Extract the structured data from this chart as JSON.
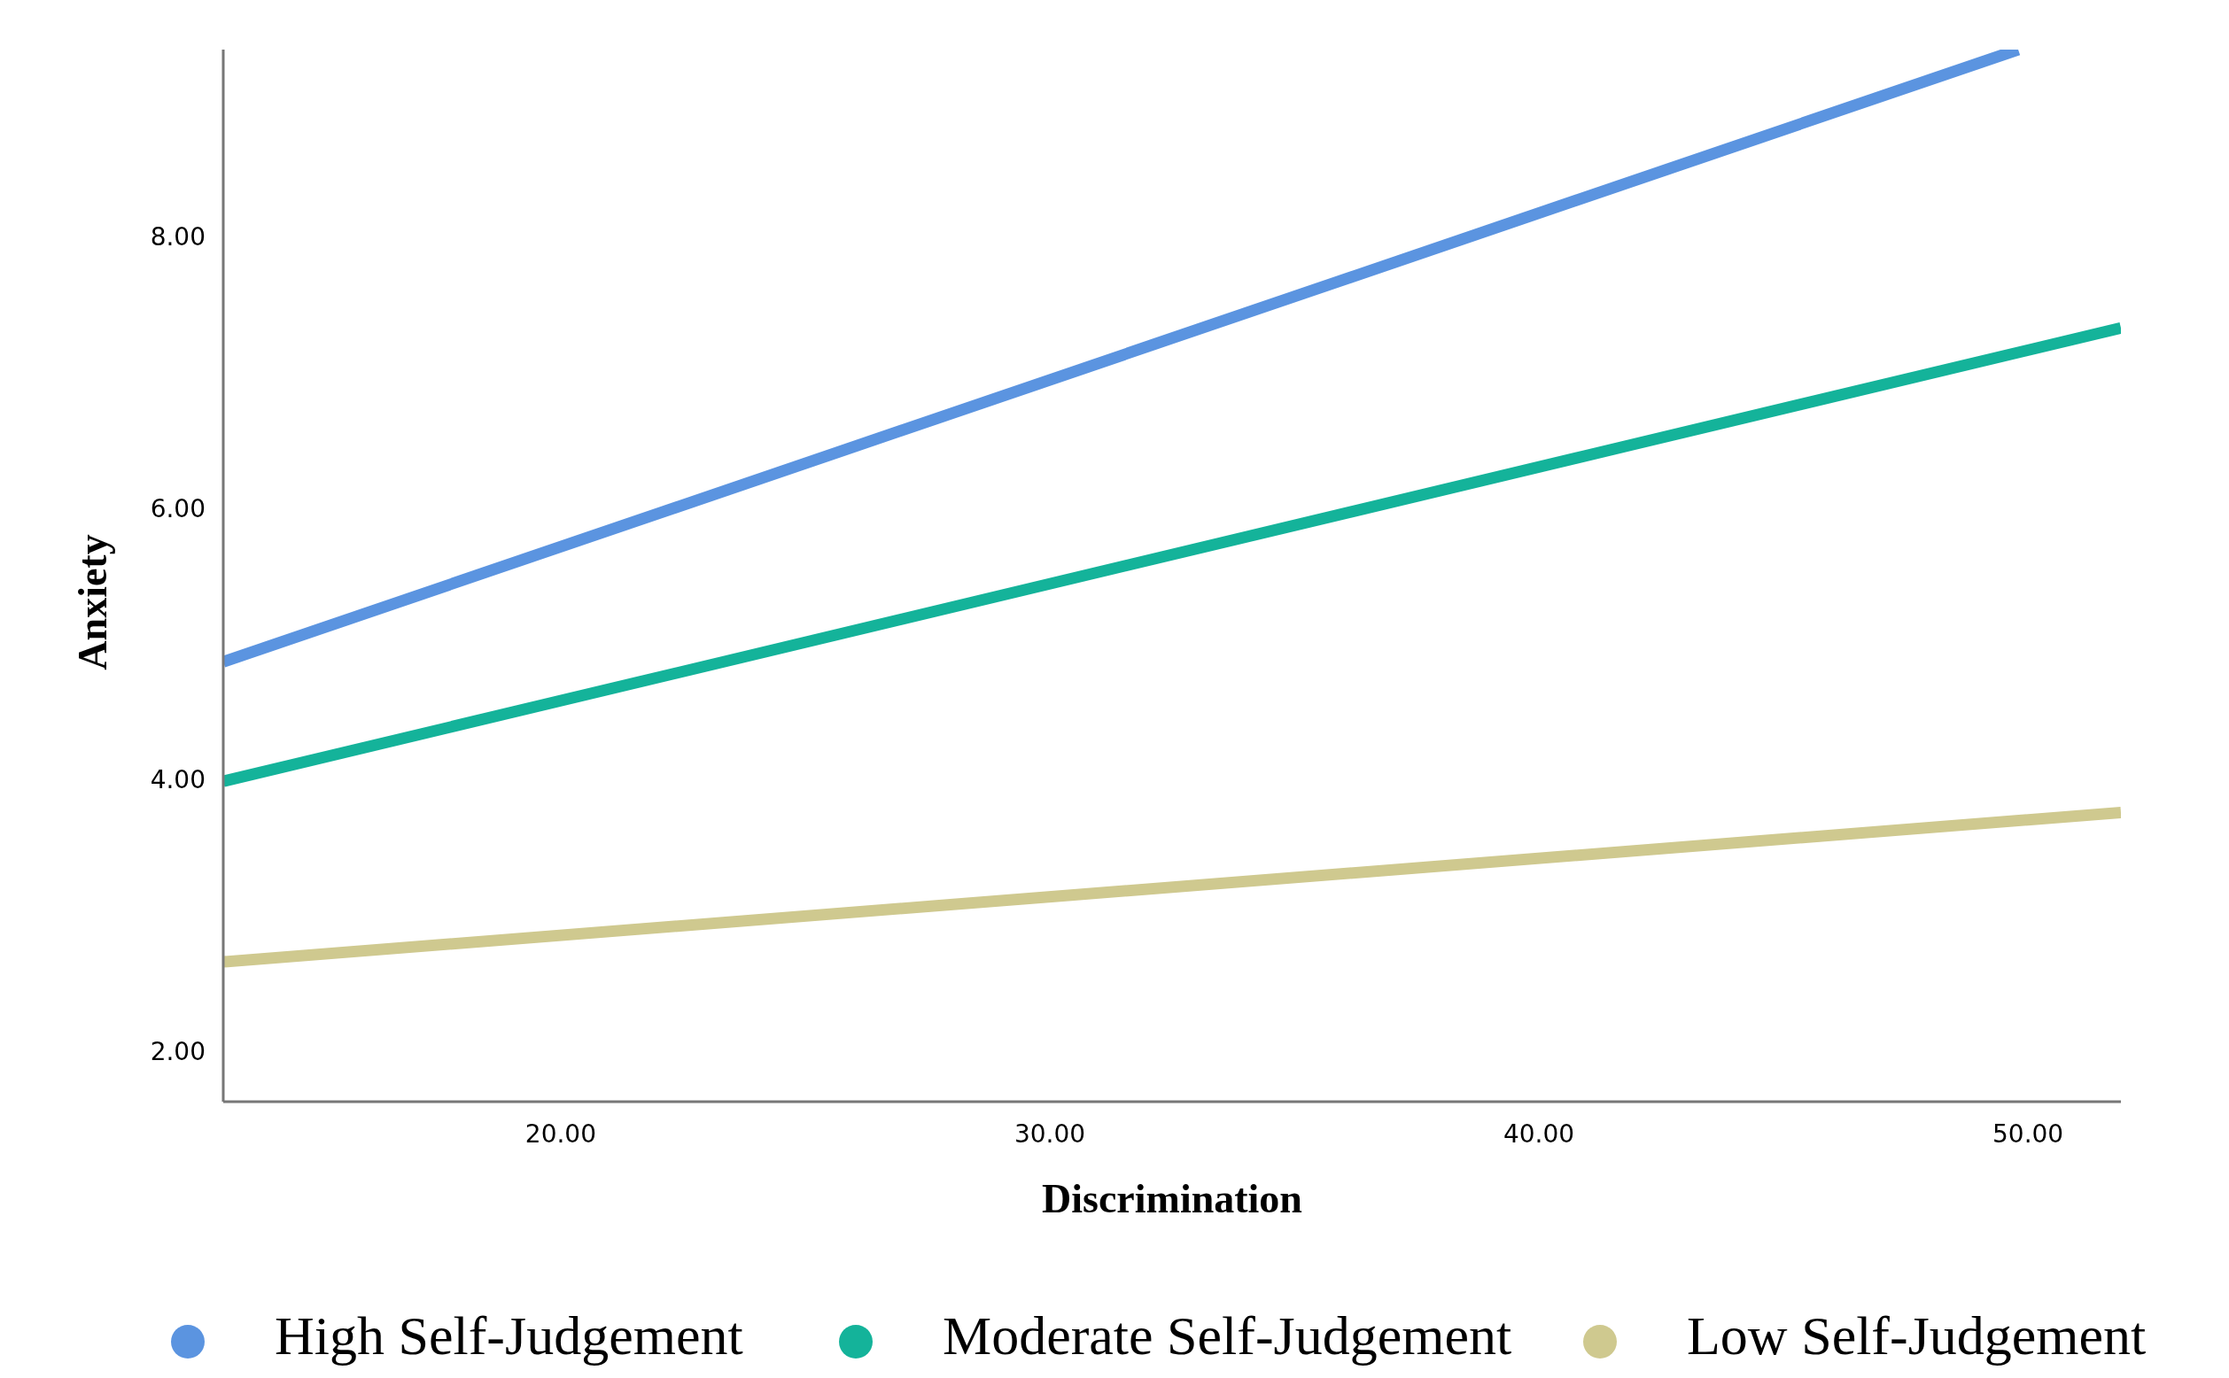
{
  "chart_data": {
    "type": "line",
    "xlabel": "Discrimination",
    "ylabel": "Anxiety",
    "xlim": [
      13.1,
      51.9
    ],
    "ylim": [
      1.64,
      9.39
    ],
    "xticks": [
      {
        "value": 20,
        "label": "20.00"
      },
      {
        "value": 30,
        "label": "30.00"
      },
      {
        "value": 40,
        "label": "40.00"
      },
      {
        "value": 50,
        "label": "50.00"
      }
    ],
    "yticks": [
      {
        "value": 2,
        "label": "2.00"
      },
      {
        "value": 4,
        "label": "4.00"
      },
      {
        "value": 6,
        "label": "6.00"
      },
      {
        "value": 8,
        "label": "8.00"
      }
    ],
    "grid": false,
    "legend": "bottom",
    "marker": "none",
    "line_style": "solid",
    "series": [
      {
        "name": "High Self-Judgement",
        "color": "#5b94e0",
        "x": [
          13.1,
          49.8
        ],
        "values": [
          4.88,
          9.39
        ]
      },
      {
        "name": "Moderate Self-Judgement",
        "color": "#14b39a",
        "x": [
          13.1,
          51.9
        ],
        "values": [
          4.0,
          7.34
        ]
      },
      {
        "name": "Low Self-Judgement",
        "color": "#cfc98f",
        "x": [
          13.1,
          51.9
        ],
        "values": [
          2.67,
          3.77
        ]
      }
    ]
  }
}
